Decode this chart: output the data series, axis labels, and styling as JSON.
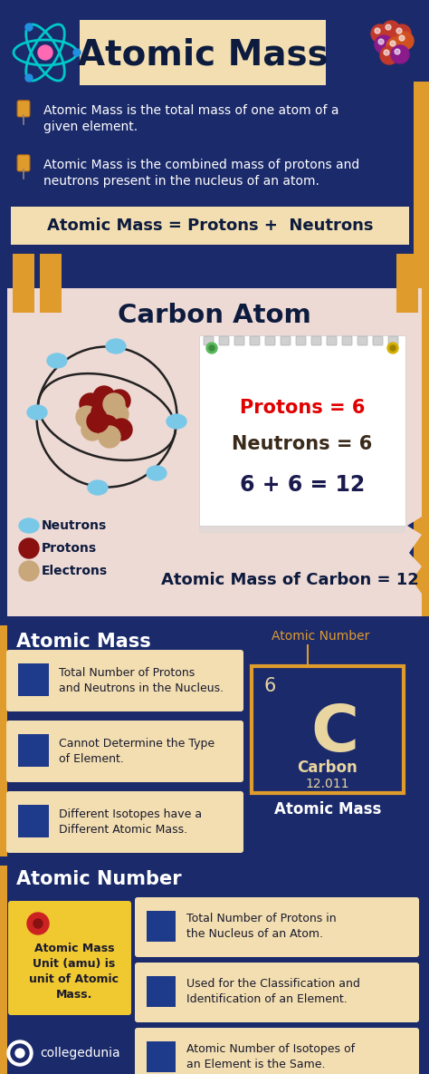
{
  "bg_color": "#1b2a6b",
  "title": "Atomic Mass",
  "title_bg": "#f2deb0",
  "orange_accent": "#e09b2d",
  "cream_bg": "#f2deb0",
  "dark_blue": "#1b2a6b",
  "bullet1": "Atomic Mass is the total mass of one atom of a\ngiven element.",
  "bullet2": "Atomic Mass is the combined mass of protons and\nneutrons present in the nucleus of an atom.",
  "formula": "Atomic Mass = Protons +  Neutrons",
  "carbon_title": "Carbon Atom",
  "protons_text": "Protons = 6",
  "neutrons_text": "Neutrons = 6",
  "sum_text": "6 + 6 = 12",
  "atomic_mass_carbon": "Atomic Mass of Carbon = 12",
  "neutrons_label": "Neutrons",
  "protons_label": "Protons",
  "electrons_label": "Electrons",
  "atomic_mass_header": "Atomic Mass",
  "atomic_number_label": "Atomic Number",
  "atomic_mass_label": "Atomic Mass",
  "atomic_number_header": "Atomic Number",
  "element_symbol": "C",
  "element_number": "6",
  "element_name": "Carbon",
  "element_mass": "12.011",
  "am_bullet1": "Total Number of Protons\nand Neutrons in the Nucleus.",
  "am_bullet2": "Cannot Determine the Type\nof Element.",
  "am_bullet3": "Different Isotopes have a\nDifferent Atomic Mass.",
  "an_bullet1": "Total Number of Protons in\nthe Nucleus of an Atom.",
  "an_bullet2": "Used for the Classification and\nIdentification of an Element.",
  "an_bullet3": "Atomic Number of Isotopes of\nan Element is the Same.",
  "amu_text": "Atomic Mass\nUnit (amu) is\nunit of Atomic\nMass.",
  "footer": "collegedunia"
}
